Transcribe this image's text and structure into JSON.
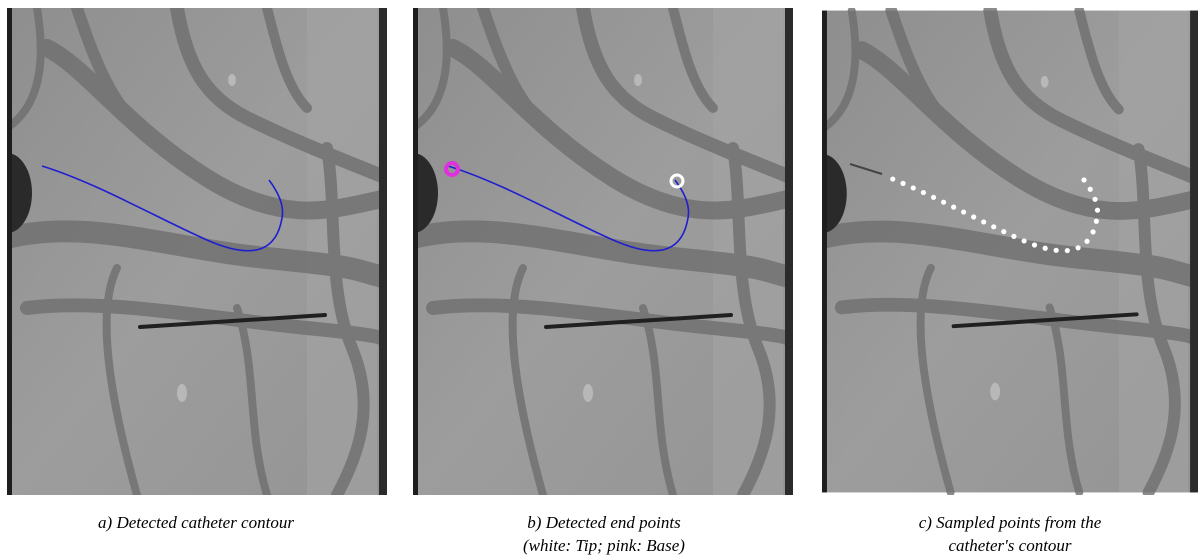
{
  "figure": {
    "panels": [
      {
        "caption_lines": [
          "a) Detected catheter contour"
        ]
      },
      {
        "caption_lines": [
          "b) Detected end points",
          "(white: Tip; pink: Base)"
        ]
      },
      {
        "caption_lines": [
          "c) Sampled points from the",
          "catheter's contour"
        ]
      }
    ]
  }
}
